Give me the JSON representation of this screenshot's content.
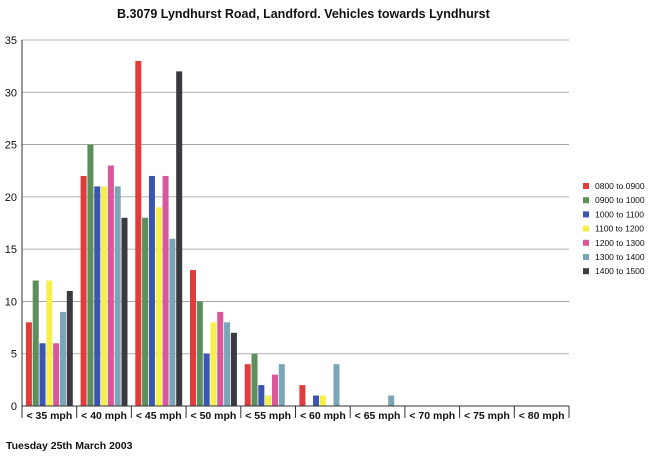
{
  "chart_data": {
    "type": "bar",
    "title": "B.3079 Lyndhurst Road, Landford.   Vehicles towards Lyndhurst",
    "xlabel": "",
    "ylabel": "",
    "ylim": [
      0,
      35
    ],
    "yticks": [
      0,
      5,
      10,
      15,
      20,
      25,
      30,
      35
    ],
    "grid": true,
    "legend_position": "right",
    "categories": [
      "< 35 mph",
      "< 40 mph",
      "< 45 mph",
      "< 50 mph",
      "< 55 mph",
      "< 60 mph",
      "< 65 mph",
      "< 70 mph",
      "< 75 mph",
      "< 80 mph"
    ],
    "series": [
      {
        "name": "0800 to 0900",
        "color": "#e03c3c",
        "values": [
          8,
          22,
          33,
          13,
          4,
          2,
          0,
          0,
          0,
          0
        ]
      },
      {
        "name": "0900 to 1000",
        "color": "#5c8f5c",
        "values": [
          12,
          25,
          18,
          10,
          5,
          0,
          0,
          0,
          0,
          0
        ]
      },
      {
        "name": "1000 to 1100",
        "color": "#3b55b0",
        "values": [
          6,
          21,
          22,
          5,
          2,
          1,
          0,
          0,
          0,
          0
        ]
      },
      {
        "name": "1100 to 1200",
        "color": "#f5f04a",
        "values": [
          12,
          21,
          19,
          8,
          1,
          1,
          0,
          0,
          0,
          0
        ]
      },
      {
        "name": "1200 to 1300",
        "color": "#d9579a",
        "values": [
          6,
          23,
          22,
          9,
          3,
          0,
          0,
          0,
          0,
          0
        ]
      },
      {
        "name": "1300 to 1400",
        "color": "#7aa6b8",
        "values": [
          9,
          21,
          16,
          8,
          4,
          4,
          1,
          0,
          0,
          0
        ]
      },
      {
        "name": "1400 to 1500",
        "color": "#3a3a40",
        "values": [
          11,
          18,
          32,
          7,
          0,
          0,
          0,
          0,
          0,
          0
        ]
      }
    ]
  },
  "footer": "Tuesday 25th March 2003"
}
